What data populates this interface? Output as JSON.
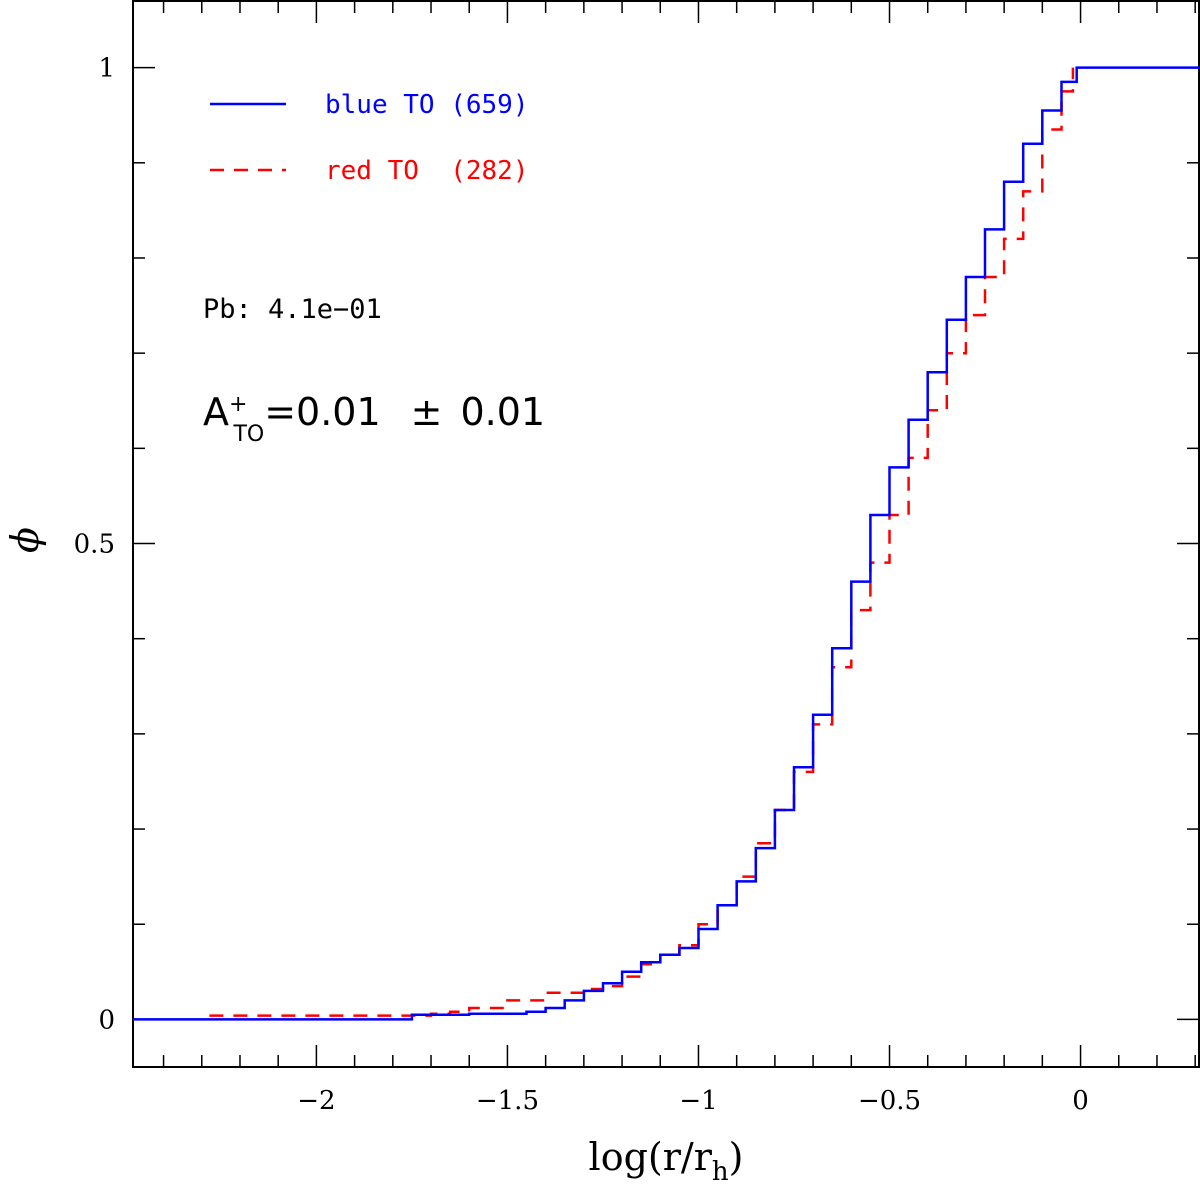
{
  "chart_data": {
    "type": "line",
    "xlabel": "log(r/r",
    "xlabel_sub": "h",
    "xlabel_close": ")",
    "ylabel": "ϕ",
    "xlim": [
      -2.48,
      0.31
    ],
    "ylim": [
      -0.05,
      1.07
    ],
    "x_ticks": [
      -2,
      -1.5,
      -1,
      -0.5,
      0
    ],
    "x_tick_labels": [
      "−2",
      "−1.5",
      "−1",
      "−0.5",
      "0"
    ],
    "y_ticks": [
      0,
      0.5,
      1
    ],
    "y_tick_labels": [
      "0",
      "0.5",
      "1"
    ],
    "grid": false,
    "legend_position": "top-left",
    "series": [
      {
        "name": "blue TO (659)",
        "color": "#0000ff",
        "dash": "solid",
        "x": [
          -2.48,
          -1.78,
          -1.75,
          -1.6,
          -1.45,
          -1.4,
          -1.35,
          -1.3,
          -1.25,
          -1.2,
          -1.15,
          -1.1,
          -1.05,
          -1.0,
          -0.95,
          -0.9,
          -0.85,
          -0.8,
          -0.75,
          -0.7,
          -0.65,
          -0.6,
          -0.55,
          -0.5,
          -0.45,
          -0.4,
          -0.35,
          -0.3,
          -0.25,
          -0.2,
          -0.15,
          -0.1,
          -0.05,
          -0.01,
          0.31
        ],
        "y": [
          0,
          0,
          0.005,
          0.006,
          0.008,
          0.012,
          0.02,
          0.03,
          0.038,
          0.05,
          0.06,
          0.068,
          0.075,
          0.095,
          0.12,
          0.145,
          0.18,
          0.22,
          0.265,
          0.32,
          0.39,
          0.46,
          0.53,
          0.58,
          0.63,
          0.68,
          0.735,
          0.78,
          0.83,
          0.88,
          0.92,
          0.955,
          0.985,
          1.0,
          1.0
        ]
      },
      {
        "name": "red TO  (282)",
        "color": "#ff0000",
        "dash": "dashed",
        "x": [
          -2.28,
          -1.75,
          -1.7,
          -1.65,
          -1.6,
          -1.5,
          -1.4,
          -1.3,
          -1.25,
          -1.2,
          -1.15,
          -1.1,
          -1.05,
          -1.0,
          -0.95,
          -0.9,
          -0.85,
          -0.8,
          -0.75,
          -0.7,
          -0.65,
          -0.6,
          -0.55,
          -0.5,
          -0.45,
          -0.4,
          -0.35,
          -0.3,
          -0.25,
          -0.2,
          -0.15,
          -0.1,
          -0.05,
          -0.02
        ],
        "y": [
          0.004,
          0.004,
          0.006,
          0.008,
          0.012,
          0.02,
          0.028,
          0.032,
          0.035,
          0.045,
          0.058,
          0.068,
          0.078,
          0.1,
          0.12,
          0.15,
          0.185,
          0.22,
          0.26,
          0.31,
          0.37,
          0.43,
          0.48,
          0.53,
          0.59,
          0.64,
          0.7,
          0.74,
          0.78,
          0.82,
          0.87,
          0.935,
          0.975,
          1.0
        ]
      }
    ],
    "annotations": {
      "pb": "Pb: 4.1e−01",
      "a_main": "A",
      "a_sup": "+",
      "a_sub": "TO",
      "a_value": "=0.01",
      "a_pm": "±",
      "a_err": "0.01"
    }
  }
}
